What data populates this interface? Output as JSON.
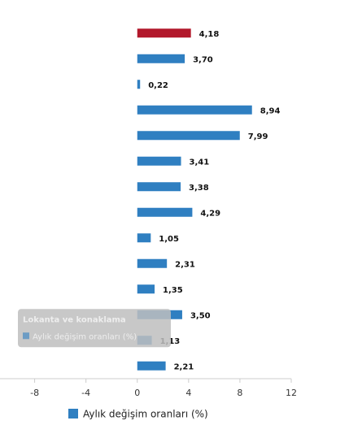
{
  "chart_data": {
    "type": "hbar",
    "categories": [
      null,
      null,
      null,
      null,
      null,
      null,
      null,
      null,
      null,
      null,
      null,
      null,
      null,
      null
    ],
    "series": [
      {
        "name": "Aylık değişim oranları (%)",
        "color": "#2f7fc1",
        "values": [
          4.18,
          3.7,
          0.22,
          8.94,
          7.99,
          3.41,
          3.38,
          4.29,
          1.05,
          2.31,
          1.35,
          3.5,
          1.13,
          2.21
        ],
        "value_labels": [
          "4,18",
          "3,70",
          "0,22",
          "8,94",
          "7,99",
          "3,41",
          "3,38",
          "4,29",
          "1,05",
          "2,31",
          "1,35",
          "3,50",
          "1,13",
          "2,21"
        ],
        "colors": [
          "#b2182b",
          "#2f7fc1",
          "#2f7fc1",
          "#2f7fc1",
          "#2f7fc1",
          "#2f7fc1",
          "#2f7fc1",
          "#2f7fc1",
          "#2f7fc1",
          "#2f7fc1",
          "#2f7fc1",
          "#2f7fc1",
          "#2f7fc1",
          "#2f7fc1"
        ]
      }
    ],
    "xlim": [
      -10.7,
      12
    ],
    "xticks": [
      -8,
      -4,
      0,
      4,
      8,
      12
    ],
    "legend": "bottom",
    "tooltip": {
      "index": 11,
      "title": "Lokanta ve konaklama",
      "series": "Aylık değişim oranları (%)"
    }
  }
}
